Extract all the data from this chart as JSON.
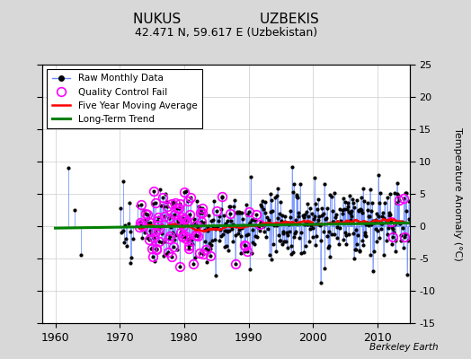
{
  "title_line1": "NUKUS                  UZBEKIS",
  "title_line2": "42.471 N, 59.617 E (Uzbekistan)",
  "xlabel_ticks": [
    1960,
    1970,
    1980,
    1990,
    2000,
    2010
  ],
  "ylim": [
    -15,
    25
  ],
  "yticks": [
    -15,
    -10,
    -5,
    0,
    5,
    10,
    15,
    20,
    25
  ],
  "ylabel_right": "Temperature Anomaly (°C)",
  "watermark": "Berkeley Earth",
  "xlim": [
    1958,
    2015
  ],
  "background_color": "#d8d8d8",
  "plot_background": "#ffffff",
  "raw_line_color": "#6688ff",
  "raw_marker_color": "black",
  "qc_fail_color": "magenta",
  "moving_avg_color": "red",
  "trend_color": "green",
  "title_fontsize": 11,
  "subtitle_fontsize": 9,
  "seed": 17
}
